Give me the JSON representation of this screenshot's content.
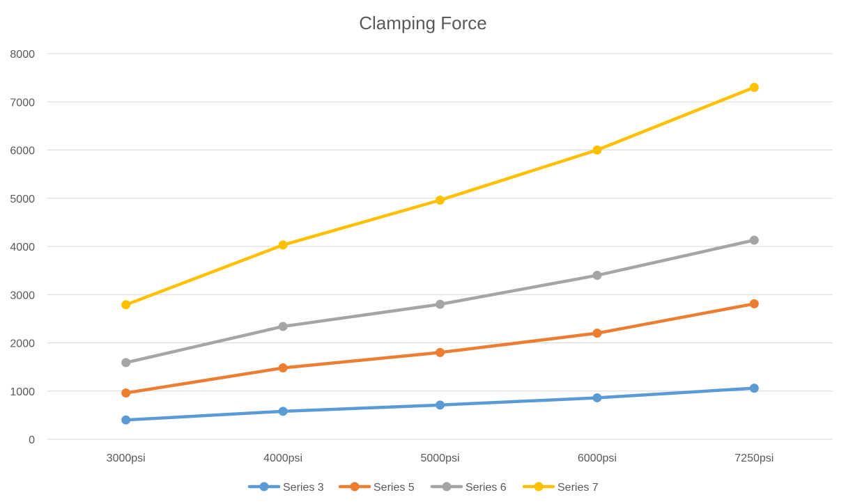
{
  "chart_data": {
    "type": "line",
    "title": "Clamping Force",
    "xlabel": "",
    "ylabel": "",
    "categories": [
      "3000psi",
      "4000psi",
      "5000psi",
      "6000psi",
      "7250psi"
    ],
    "ylim": [
      0,
      8000
    ],
    "yticks": [
      0,
      1000,
      2000,
      3000,
      4000,
      5000,
      6000,
      7000,
      8000
    ],
    "grid": true,
    "legend_position": "bottom",
    "markers": true,
    "series": [
      {
        "name": "Series 3",
        "color": "#5b9bd5",
        "values": [
          400,
          580,
          710,
          860,
          1060
        ]
      },
      {
        "name": "Series 5",
        "color": "#ed7d31",
        "values": [
          960,
          1480,
          1800,
          2200,
          2810
        ]
      },
      {
        "name": "Series 6",
        "color": "#a5a5a5",
        "values": [
          1590,
          2340,
          2800,
          3400,
          4130
        ]
      },
      {
        "name": "Series 7",
        "color": "#ffc000",
        "values": [
          2790,
          4030,
          4960,
          6000,
          7300
        ]
      }
    ]
  }
}
